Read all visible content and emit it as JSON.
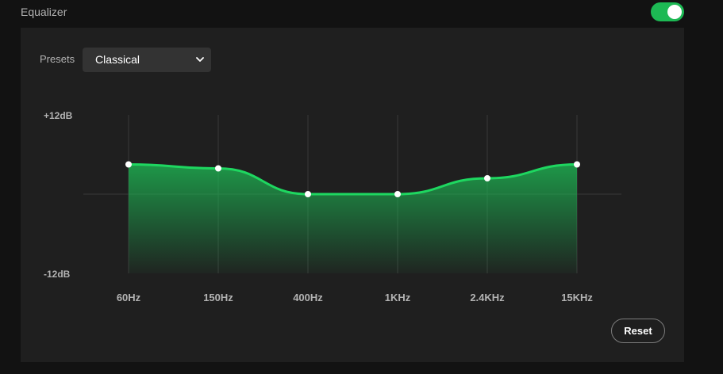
{
  "header": {
    "title": "Equalizer",
    "toggle_on": true
  },
  "presets": {
    "label": "Presets",
    "selected": "Classical"
  },
  "chart_data": {
    "type": "area",
    "categories": [
      "60Hz",
      "150Hz",
      "400Hz",
      "1KHz",
      "2.4KHz",
      "15KHz"
    ],
    "values": [
      4.5,
      3.9,
      0.0,
      0.0,
      2.4,
      4.5
    ],
    "ylim": [
      -12,
      12
    ],
    "y_tick_labels": [
      "+12dB",
      "-12dB"
    ],
    "grid": true,
    "colors": {
      "line": "#1ed760",
      "fill_top": "#1db954",
      "point": "#ffffff",
      "grid": "#3a3a3a"
    }
  },
  "actions": {
    "reset_label": "Reset"
  }
}
